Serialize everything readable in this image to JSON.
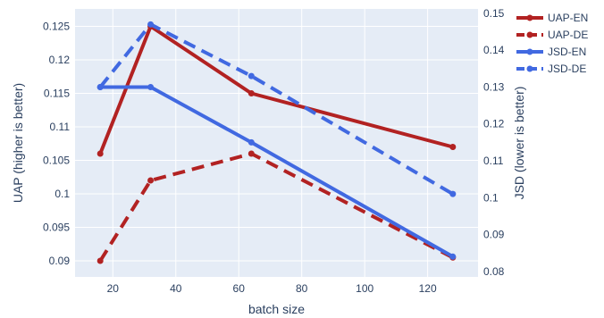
{
  "chart_data": {
    "type": "line",
    "x": [
      16,
      32,
      64,
      128
    ],
    "xlabel": "batch size",
    "xlim": [
      8,
      136
    ],
    "xticks": [
      "20",
      "40",
      "60",
      "80",
      "100",
      "120"
    ],
    "y_left": {
      "label": "UAP (higher is better)",
      "range": [
        0.0876,
        0.1276
      ],
      "ticks": [
        "0.09",
        "0.095",
        "0.1",
        "0.105",
        "0.11",
        "0.115",
        "0.12",
        "0.125"
      ]
    },
    "y_right": {
      "label": "JSD (lower is better)",
      "range": [
        0.0785,
        0.1512
      ],
      "ticks": [
        "0.08",
        "0.09",
        "0.1",
        "0.11",
        "0.12",
        "0.13",
        "0.14",
        "0.15"
      ]
    },
    "grid": true,
    "legend_position": "top-right",
    "series": [
      {
        "name": "UAP-EN",
        "axis": "left",
        "values": [
          0.106,
          0.125,
          0.115,
          0.107
        ],
        "color": "#b22222",
        "dash": "solid"
      },
      {
        "name": "UAP-DE",
        "axis": "left",
        "values": [
          0.09,
          0.102,
          0.106,
          0.0905
        ],
        "color": "#b22222",
        "dash": "dash"
      },
      {
        "name": "JSD-EN",
        "axis": "right",
        "values": [
          0.13,
          0.13,
          0.115,
          0.084
        ],
        "color": "#4169e1",
        "dash": "solid"
      },
      {
        "name": "JSD-DE",
        "axis": "right",
        "values": [
          0.13,
          0.147,
          0.133,
          0.101
        ],
        "color": "#4169e1",
        "dash": "dash"
      }
    ]
  },
  "colors": {
    "plot_bg": "#e5ecf6",
    "grid": "#ffffff",
    "text": "#2a3f5f"
  }
}
